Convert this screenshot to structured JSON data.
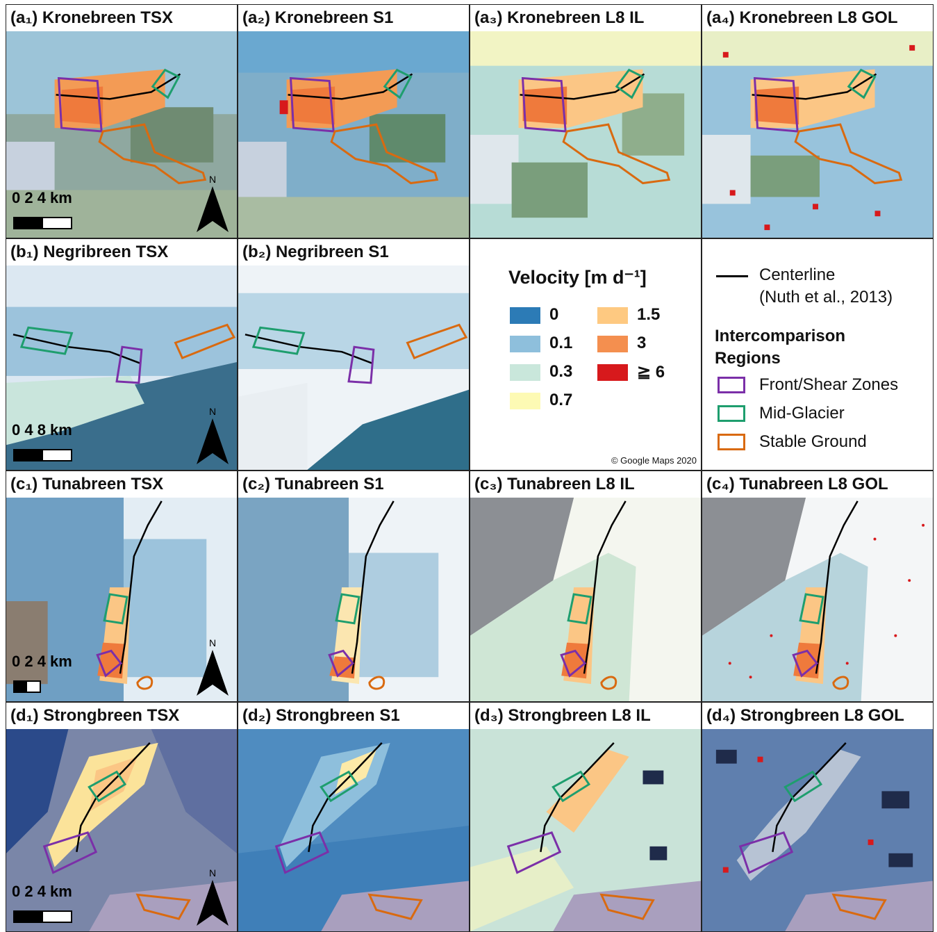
{
  "panels": {
    "a1": {
      "title": "(a₁) Kronebreen TSX"
    },
    "a2": {
      "title": "(a₂) Kronebreen S1"
    },
    "a3": {
      "title": "(a₃) Kronebreen L8 IL"
    },
    "a4": {
      "title": "(a₄) Kronebreen L8 GOL"
    },
    "b1": {
      "title": "(b₁) Negribreen TSX"
    },
    "b2": {
      "title": "(b₂) Negribreen S1"
    },
    "c1": {
      "title": "(c₁) Tunabreen TSX"
    },
    "c2": {
      "title": "(c₂) Tunabreen S1"
    },
    "c3": {
      "title": "(c₃) Tunabreen L8 IL"
    },
    "c4": {
      "title": "(c₄) Tunabreen L8 GOL"
    },
    "d1": {
      "title": "(d₁) Strongbreen TSX"
    },
    "d2": {
      "title": "(d₂) Strongbreen S1"
    },
    "d3": {
      "title": "(d₃) Strongbreen L8 IL"
    },
    "d4": {
      "title": "(d₄) Strongbreen L8 GOL"
    }
  },
  "scalebars": {
    "a1": "0   2   4 km",
    "b1": "0   4   8 km",
    "c1": "0 2 4 km",
    "d1": "0   2   4 km"
  },
  "north_label": "N",
  "legend": {
    "title": "Velocity [m d⁻¹]",
    "entries": [
      {
        "label": "0",
        "color": "#2c7bb6"
      },
      {
        "label": "0.1",
        "color": "#8ebfdc"
      },
      {
        "label": "0.3",
        "color": "#c9e7db"
      },
      {
        "label": "0.7",
        "color": "#fdfab4"
      },
      {
        "label": "1.5",
        "color": "#fec981"
      },
      {
        "label": "3",
        "color": "#f48f4f"
      },
      {
        "label": "≧ 6",
        "color": "#d7191c"
      }
    ],
    "credit": "© Google Maps 2020"
  },
  "key": {
    "centerline": "Centerline",
    "centerline_ref": "(Nuth et al., 2013)",
    "regions_title_1": "Intercomparison",
    "regions_title_2": "Regions",
    "regions": [
      {
        "label": "Front/Shear Zones",
        "color": "#7b2fa8"
      },
      {
        "label": "Mid-Glacier",
        "color": "#1e9e6e"
      },
      {
        "label": "Stable Ground",
        "color": "#d96a10"
      }
    ]
  }
}
